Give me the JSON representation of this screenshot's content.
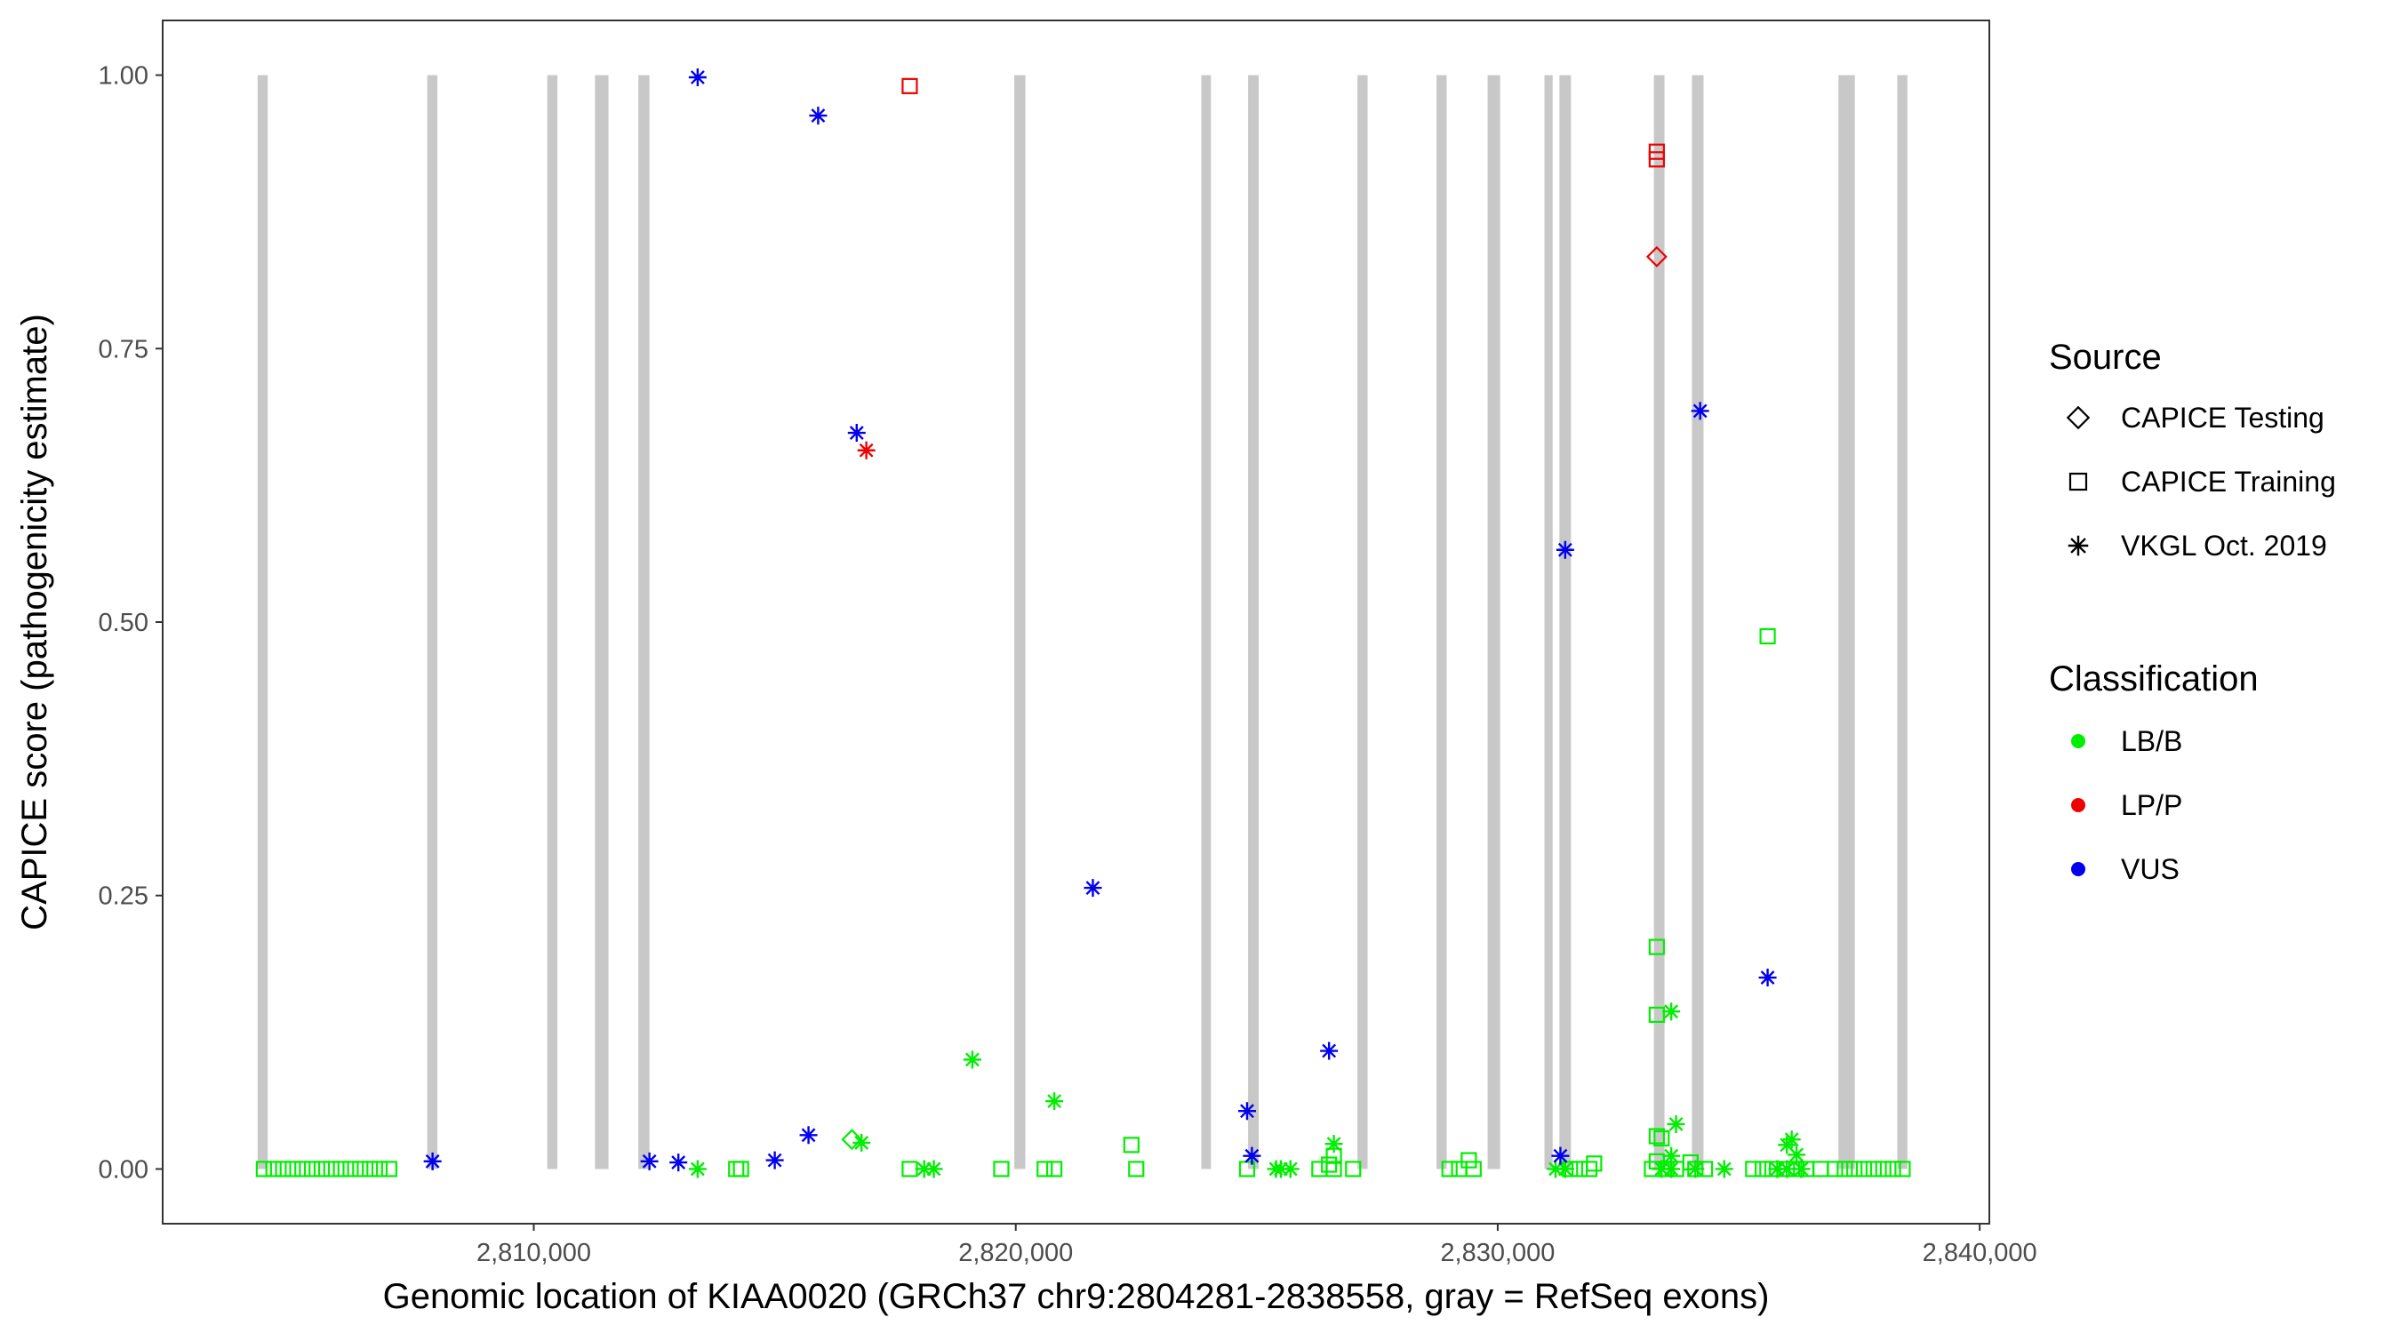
{
  "chart_data": {
    "type": "scatter",
    "xlabel": "Genomic location of KIAA0020 (GRCh37 chr9:2804281-2838558, gray = RefSeq exons)",
    "ylabel": "CAPICE score (pathogenicity estimate)",
    "xlim": [
      2802300,
      2840200
    ],
    "ylim": [
      -0.05,
      1.05
    ],
    "x_ticks": [
      2810000,
      2820000,
      2830000,
      2840000
    ],
    "x_tick_labels": [
      "2,810,000",
      "2,820,000",
      "2,830,000",
      "2,840,000"
    ],
    "y_ticks": [
      0,
      0.25,
      0.5,
      0.75,
      1.0
    ],
    "y_tick_labels": [
      "0.00",
      "0.25",
      "0.50",
      "0.75",
      "1.00"
    ],
    "grid": false,
    "legend_position": "right",
    "exon_color": "#c8c8c8",
    "exons": [
      [
        2804270,
        2804480
      ],
      [
        2807790,
        2808000
      ],
      [
        2810280,
        2810490
      ],
      [
        2811270,
        2811550
      ],
      [
        2812170,
        2812400
      ],
      [
        2819970,
        2820200
      ],
      [
        2823850,
        2824050
      ],
      [
        2824820,
        2825040
      ],
      [
        2827090,
        2827300
      ],
      [
        2828730,
        2828940
      ],
      [
        2829790,
        2830050
      ],
      [
        2830970,
        2831140
      ],
      [
        2831280,
        2831520
      ],
      [
        2833240,
        2833460
      ],
      [
        2834030,
        2834270
      ],
      [
        2837070,
        2837410
      ],
      [
        2838290,
        2838500
      ]
    ],
    "legend": {
      "source_title": "Source",
      "source_entries": [
        {
          "label": "CAPICE Testing",
          "shape": "diamond"
        },
        {
          "label": "CAPICE Training",
          "shape": "square"
        },
        {
          "label": "VKGL Oct. 2019",
          "shape": "asterisk"
        }
      ],
      "class_title": "Classification",
      "class_entries": [
        {
          "label": "LB/B",
          "color": "#00ee00"
        },
        {
          "label": "LP/P",
          "color": "#ee0000"
        },
        {
          "label": "VUS",
          "color": "#0000ee"
        }
      ]
    },
    "series": [
      {
        "classification": "VUS",
        "source": "VKGL Oct. 2019",
        "color": "#0000ee",
        "shape": "asterisk",
        "points": [
          [
            2813400,
            0.998
          ],
          [
            2815900,
            0.963
          ],
          [
            2816700,
            0.673
          ],
          [
            2821600,
            0.257
          ],
          [
            2834200,
            0.693
          ],
          [
            2831400,
            0.566
          ],
          [
            2835600,
            0.175
          ],
          [
            2826500,
            0.108
          ],
          [
            2824800,
            0.053
          ],
          [
            2815700,
            0.031
          ],
          [
            2807900,
            0.007
          ],
          [
            2812400,
            0.007
          ],
          [
            2813000,
            0.006
          ],
          [
            2815000,
            0.008
          ],
          [
            2824900,
            0.012
          ],
          [
            2831300,
            0.012
          ]
        ]
      },
      {
        "classification": "LP/P",
        "source": "VKGL Oct. 2019",
        "color": "#ee0000",
        "shape": "asterisk",
        "points": [
          [
            2816900,
            0.657
          ]
        ]
      },
      {
        "classification": "LP/P",
        "source": "CAPICE Training",
        "color": "#ee0000",
        "shape": "square",
        "points": [
          [
            2817800,
            0.99
          ],
          [
            2833300,
            0.93
          ],
          [
            2833300,
            0.923
          ]
        ]
      },
      {
        "classification": "LP/P",
        "source": "CAPICE Testing",
        "color": "#ee0000",
        "shape": "diamond",
        "points": [
          [
            2833300,
            0.834
          ]
        ]
      },
      {
        "classification": "LB/B",
        "source": "CAPICE Training",
        "color": "#00ee00",
        "shape": "square",
        "points": [
          [
            2835600,
            0.487
          ],
          [
            2833300,
            0.203
          ],
          [
            2833300,
            0.141
          ],
          [
            2833300,
            0.03
          ],
          [
            2833400,
            0.028
          ],
          [
            2822400,
            0.022
          ],
          [
            2826600,
            0.012
          ],
          [
            2829400,
            0.008
          ],
          [
            2832000,
            0.005
          ],
          [
            2833300,
            0.007
          ],
          [
            2834000,
            0.006
          ],
          [
            2826500,
            0.004
          ],
          [
            2804400,
            0
          ],
          [
            2804600,
            0
          ],
          [
            2804800,
            0
          ],
          [
            2805000,
            0
          ],
          [
            2805200,
            0
          ],
          [
            2805400,
            0
          ],
          [
            2805600,
            0
          ],
          [
            2805800,
            0
          ],
          [
            2806000,
            0
          ],
          [
            2806200,
            0
          ],
          [
            2806400,
            0
          ],
          [
            2806600,
            0
          ],
          [
            2806800,
            0
          ],
          [
            2807000,
            0
          ],
          [
            2814300,
            0
          ],
          [
            2814200,
            0
          ],
          [
            2817800,
            0
          ],
          [
            2819700,
            0
          ],
          [
            2820600,
            0
          ],
          [
            2820800,
            0
          ],
          [
            2822500,
            0
          ],
          [
            2824800,
            0
          ],
          [
            2826300,
            0
          ],
          [
            2826600,
            0
          ],
          [
            2827000,
            0
          ],
          [
            2829000,
            0
          ],
          [
            2829200,
            0
          ],
          [
            2829500,
            0
          ],
          [
            2831500,
            0
          ],
          [
            2831700,
            0
          ],
          [
            2831900,
            0
          ],
          [
            2833200,
            0
          ],
          [
            2833500,
            0
          ],
          [
            2833700,
            0
          ],
          [
            2834100,
            0
          ],
          [
            2834300,
            0
          ],
          [
            2835300,
            0
          ],
          [
            2835500,
            0
          ],
          [
            2835700,
            0
          ],
          [
            2836000,
            0
          ],
          [
            2836200,
            0
          ],
          [
            2836400,
            0
          ],
          [
            2836700,
            0
          ],
          [
            2837000,
            0
          ],
          [
            2837200,
            0
          ],
          [
            2837400,
            0
          ],
          [
            2837600,
            0
          ],
          [
            2837800,
            0
          ],
          [
            2838000,
            0
          ],
          [
            2838200,
            0
          ],
          [
            2838400,
            0
          ]
        ]
      },
      {
        "classification": "LB/B",
        "source": "VKGL Oct. 2019",
        "color": "#00ee00",
        "shape": "asterisk",
        "points": [
          [
            2819100,
            0.1
          ],
          [
            2820800,
            0.062
          ],
          [
            2833600,
            0.144
          ],
          [
            2833700,
            0.041
          ],
          [
            2826600,
            0.023
          ],
          [
            2836100,
            0.027
          ],
          [
            2836000,
            0.022
          ],
          [
            2816800,
            0.024
          ],
          [
            2833600,
            0.012
          ],
          [
            2836200,
            0.013
          ],
          [
            2813400,
            0
          ],
          [
            2818100,
            0
          ],
          [
            2818300,
            0
          ],
          [
            2825400,
            0
          ],
          [
            2825500,
            0
          ],
          [
            2825700,
            0
          ],
          [
            2831200,
            0
          ],
          [
            2831400,
            0
          ],
          [
            2833400,
            0
          ],
          [
            2833600,
            0
          ],
          [
            2834100,
            0
          ],
          [
            2834700,
            0
          ],
          [
            2835800,
            0
          ],
          [
            2836000,
            0
          ],
          [
            2836300,
            0
          ]
        ]
      },
      {
        "classification": "LB/B",
        "source": "CAPICE Testing",
        "color": "#00ee00",
        "shape": "diamond",
        "points": [
          [
            2816600,
            0.027
          ]
        ]
      }
    ]
  }
}
